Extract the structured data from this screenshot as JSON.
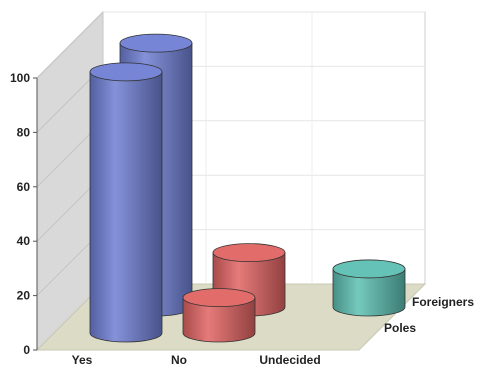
{
  "chart_data": {
    "type": "bar",
    "style": "3d-cylinder",
    "title": "",
    "xlabel": "",
    "ylabel": "",
    "ylim": [
      0,
      100
    ],
    "y_ticks": [
      0,
      20,
      40,
      60,
      80,
      100
    ],
    "grid": true,
    "categories": [
      "Yes",
      "No",
      "Undecided"
    ],
    "series": [
      {
        "name": "Poles",
        "values": [
          96,
          13,
          0
        ]
      },
      {
        "name": "Foreigners",
        "values": [
          97,
          20,
          14
        ]
      }
    ],
    "category_colors": {
      "Yes": "#6f7fd4",
      "No": "#e06462",
      "Undecided": "#5dbfb2"
    }
  }
}
